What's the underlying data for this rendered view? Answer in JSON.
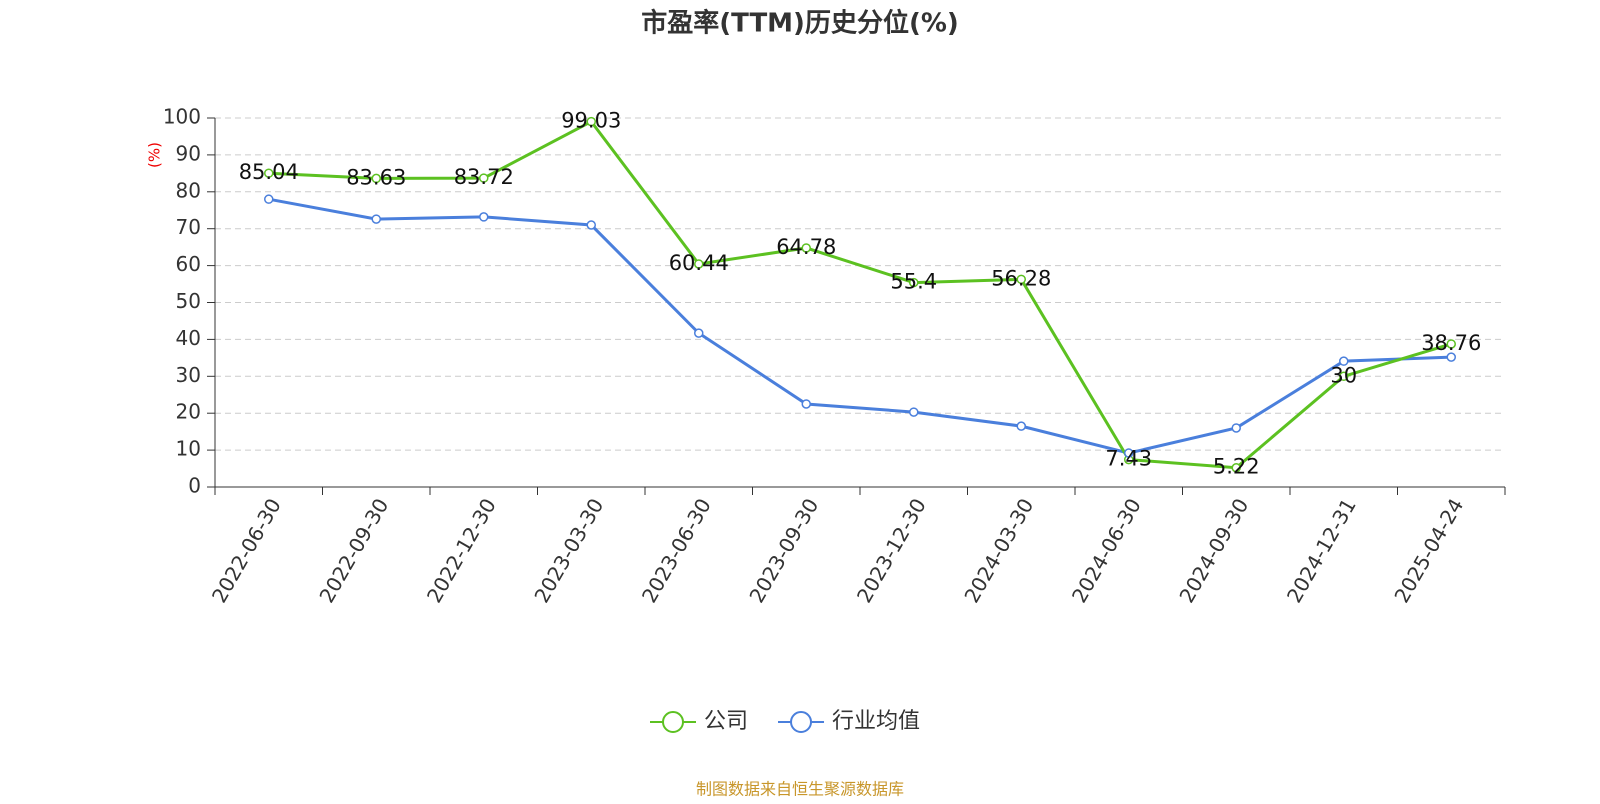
{
  "chart_data": {
    "type": "line",
    "title": "市盈率(TTM)历史分位(%)",
    "y_label": "(%)",
    "categories": [
      "2022-06-30",
      "2022-09-30",
      "2022-12-30",
      "2023-03-30",
      "2023-06-30",
      "2023-09-30",
      "2023-12-30",
      "2024-03-30",
      "2024-06-30",
      "2024-09-30",
      "2024-12-31",
      "2025-04-24"
    ],
    "series": [
      {
        "name": "公司",
        "color": "#5cc121",
        "values": [
          85.04,
          83.63,
          83.72,
          99.03,
          60.44,
          64.78,
          55.4,
          56.28,
          7.43,
          5.22,
          30,
          38.76
        ],
        "show_labels": true
      },
      {
        "name": "行业均值",
        "color": "#4a7fdc",
        "values": [
          78.0,
          72.6,
          73.2,
          71.0,
          41.7,
          22.5,
          20.3,
          16.5,
          9.2,
          16.0,
          34.1,
          35.2
        ],
        "show_labels": false
      }
    ],
    "ylim": [
      0,
      100
    ],
    "yticks": [
      0,
      10,
      20,
      30,
      40,
      50,
      60,
      70,
      80,
      90,
      100
    ],
    "grid": true,
    "legend": "bottom",
    "footer": "制图数据来自恒生聚源数据库"
  }
}
